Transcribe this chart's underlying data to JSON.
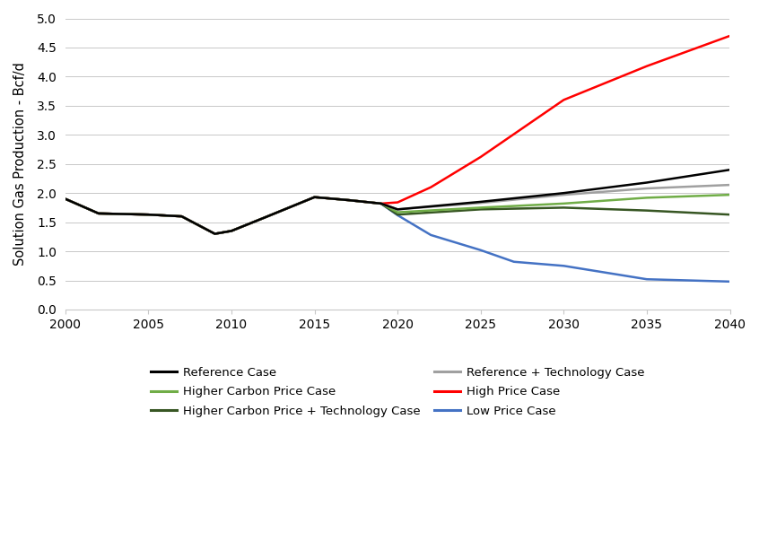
{
  "ylabel": "Solution Gas Production - Bcf/d",
  "xlim": [
    2000,
    2040
  ],
  "ylim": [
    0.0,
    5.0
  ],
  "yticks": [
    0.0,
    0.5,
    1.0,
    1.5,
    2.0,
    2.5,
    3.0,
    3.5,
    4.0,
    4.5,
    5.0
  ],
  "xticks": [
    2000,
    2005,
    2010,
    2015,
    2020,
    2025,
    2030,
    2035,
    2040
  ],
  "series": {
    "Reference Case": {
      "color": "#000000",
      "x": [
        2000,
        2002,
        2005,
        2007,
        2009,
        2010,
        2012,
        2015,
        2017,
        2018,
        2019,
        2020,
        2025,
        2030,
        2035,
        2040
      ],
      "y": [
        1.9,
        1.65,
        1.63,
        1.6,
        1.3,
        1.35,
        1.58,
        1.93,
        1.88,
        1.85,
        1.82,
        1.72,
        1.85,
        2.0,
        2.18,
        2.4
      ]
    },
    "Higher Carbon Price Case": {
      "color": "#70ad47",
      "x": [
        2000,
        2002,
        2005,
        2007,
        2009,
        2010,
        2012,
        2015,
        2017,
        2018,
        2019,
        2020,
        2025,
        2030,
        2035,
        2040
      ],
      "y": [
        1.9,
        1.65,
        1.63,
        1.6,
        1.3,
        1.35,
        1.58,
        1.93,
        1.88,
        1.85,
        1.82,
        1.67,
        1.75,
        1.82,
        1.92,
        1.97
      ]
    },
    "Higher Carbon Price + Technology Case": {
      "color": "#375623",
      "x": [
        2000,
        2002,
        2005,
        2007,
        2009,
        2010,
        2012,
        2015,
        2017,
        2018,
        2019,
        2020,
        2025,
        2030,
        2035,
        2040
      ],
      "y": [
        1.9,
        1.65,
        1.63,
        1.6,
        1.3,
        1.35,
        1.58,
        1.93,
        1.88,
        1.85,
        1.82,
        1.63,
        1.72,
        1.75,
        1.7,
        1.63
      ]
    },
    "Reference + Technology Case": {
      "color": "#a0a0a0",
      "x": [
        2000,
        2002,
        2005,
        2007,
        2009,
        2010,
        2012,
        2015,
        2017,
        2018,
        2019,
        2020,
        2025,
        2030,
        2035,
        2040
      ],
      "y": [
        1.9,
        1.65,
        1.63,
        1.6,
        1.3,
        1.35,
        1.58,
        1.93,
        1.88,
        1.85,
        1.82,
        1.72,
        1.83,
        1.97,
        2.08,
        2.14
      ]
    },
    "High Price Case": {
      "color": "#ff0000",
      "x": [
        2000,
        2002,
        2005,
        2007,
        2009,
        2010,
        2012,
        2015,
        2017,
        2018,
        2019,
        2020,
        2022,
        2025,
        2030,
        2035,
        2040
      ],
      "y": [
        1.9,
        1.65,
        1.63,
        1.6,
        1.3,
        1.35,
        1.58,
        1.93,
        1.88,
        1.85,
        1.82,
        1.84,
        2.1,
        2.62,
        3.6,
        4.18,
        4.7
      ]
    },
    "Low Price Case": {
      "color": "#4472c4",
      "x": [
        2000,
        2002,
        2005,
        2007,
        2009,
        2010,
        2012,
        2015,
        2017,
        2018,
        2019,
        2020,
        2022,
        2025,
        2027,
        2030,
        2035,
        2040
      ],
      "y": [
        1.9,
        1.65,
        1.63,
        1.6,
        1.3,
        1.35,
        1.58,
        1.93,
        1.88,
        1.85,
        1.82,
        1.62,
        1.28,
        1.02,
        0.82,
        0.75,
        0.52,
        0.48
      ]
    }
  },
  "legend_order": [
    "Reference Case",
    "Higher Carbon Price Case",
    "Higher Carbon Price + Technology Case",
    "Reference + Technology Case",
    "High Price Case",
    "Low Price Case"
  ],
  "background_color": "#ffffff",
  "grid_color": "#c8c8c8",
  "linewidth": 1.8
}
